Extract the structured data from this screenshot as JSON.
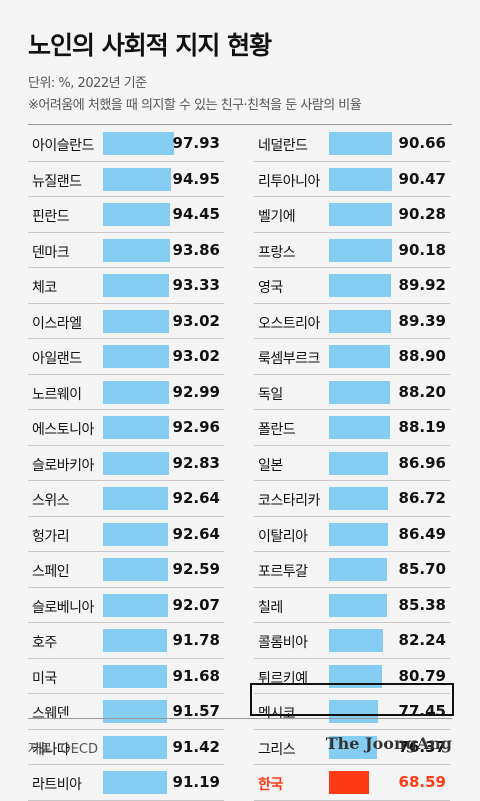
{
  "header": {
    "title": "노인의 사회적 지지 현황",
    "unit_line": "단위: %, 2022년 기준",
    "note_line": "※어려움에 처했을 때 의지할 수 있는 친구·친척을 둔 사람의 비율"
  },
  "footer": {
    "source": "자료: OECD",
    "brand": "The JoongAng"
  },
  "colors": {
    "bar": "#86cdf3",
    "highlight": "#ff3b16"
  },
  "chart_data": {
    "type": "bar",
    "orientation": "horizontal",
    "unit": "%",
    "xlim": [
      0,
      100
    ],
    "highlight": "한국",
    "columns": [
      {
        "categories": [
          "아이슬란드",
          "뉴질랜드",
          "핀란드",
          "덴마크",
          "체코",
          "이스라엘",
          "아일랜드",
          "노르웨이",
          "에스토니아",
          "슬로바키아",
          "스위스",
          "헝가리",
          "스페인",
          "슬로베니아",
          "호주",
          "미국",
          "스웨덴",
          "캐나다",
          "라트비아"
        ],
        "values": [
          97.93,
          94.95,
          94.45,
          93.86,
          93.33,
          93.02,
          93.02,
          92.99,
          92.96,
          92.83,
          92.64,
          92.64,
          92.59,
          92.07,
          91.78,
          91.68,
          91.57,
          91.42,
          91.19
        ],
        "labels": [
          "97.93",
          "94.95",
          "94.45",
          "93.86",
          "93.33",
          "93.02",
          "93.02",
          "92.99",
          "92.96",
          "92.83",
          "92.64",
          "92.64",
          "92.59",
          "92.07",
          "91.78",
          "91.68",
          "91.57",
          "91.42",
          "91.19"
        ]
      },
      {
        "categories": [
          "네덜란드",
          "리투아니아",
          "벨기에",
          "프랑스",
          "영국",
          "오스트리아",
          "룩셈부르크",
          "독일",
          "폴란드",
          "일본",
          "코스타리카",
          "이탈리아",
          "포르투갈",
          "칠레",
          "콜롬비아",
          "튀르키예",
          "멕시코",
          "그리스",
          "한국"
        ],
        "values": [
          90.66,
          90.47,
          90.28,
          90.18,
          89.92,
          89.39,
          88.9,
          88.2,
          88.19,
          86.96,
          86.72,
          86.49,
          85.7,
          85.38,
          82.24,
          80.79,
          77.45,
          76.37,
          68.59
        ],
        "labels": [
          "90.66",
          "90.47",
          "90.28",
          "90.18",
          "89.92",
          "89.39",
          "88.90",
          "88.20",
          "88.19",
          "86.96",
          "86.72",
          "86.49",
          "85.70",
          "85.38",
          "82.24",
          "80.79",
          "77.45",
          "76.37",
          "68.59"
        ]
      }
    ]
  }
}
